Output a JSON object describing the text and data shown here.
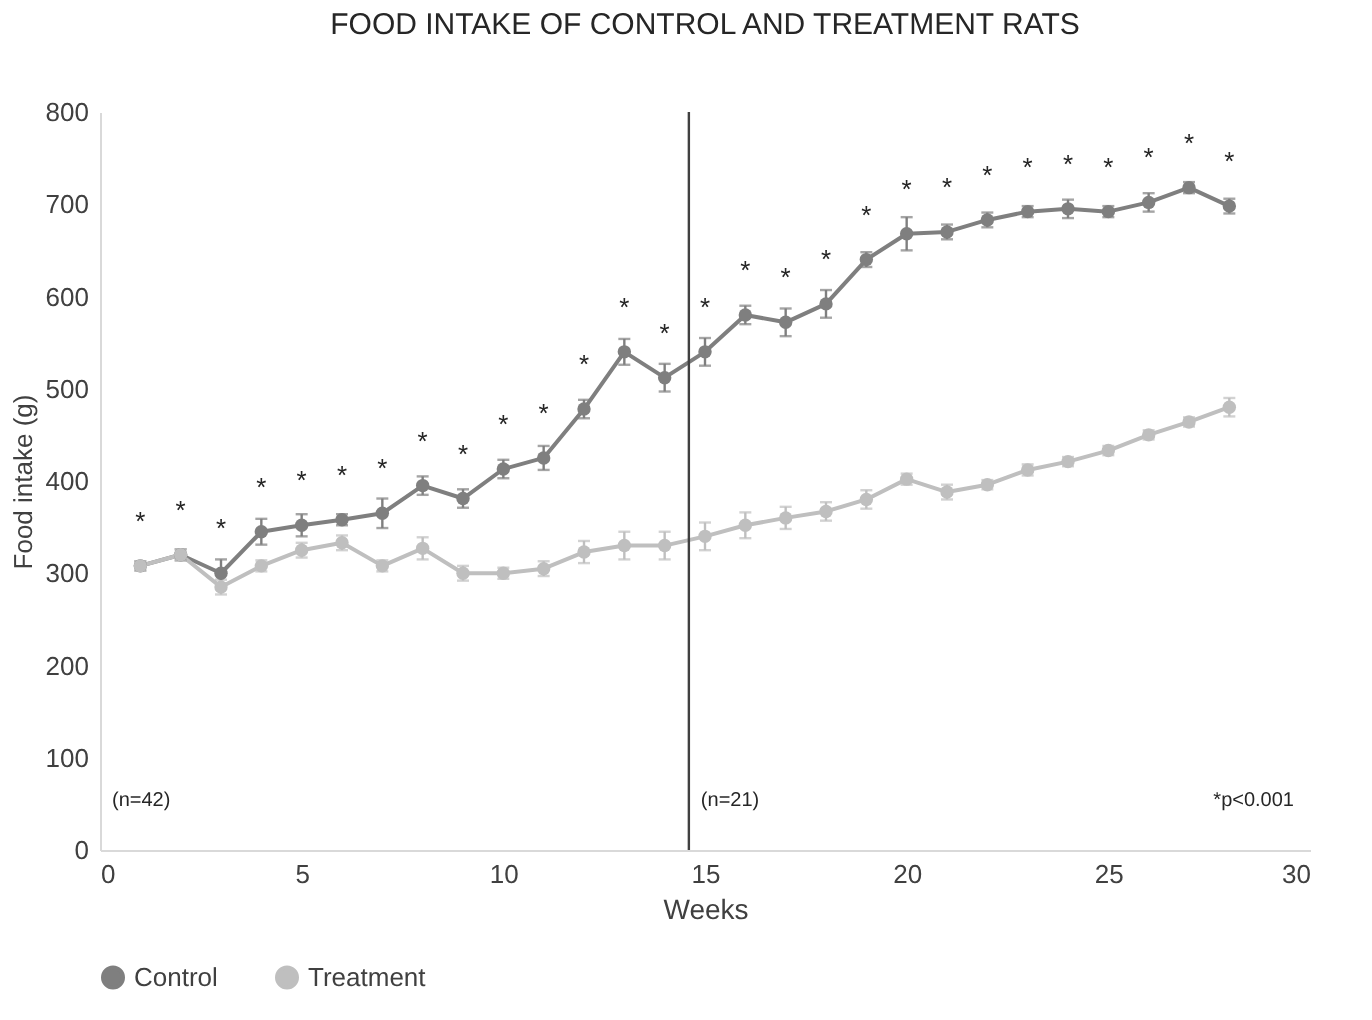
{
  "chart_data": {
    "type": "line",
    "title": "FOOD INTAKE OF CONTROL AND TREATMENT RATS",
    "xlabel": "Weeks",
    "ylabel": "Food intake (g)",
    "x": [
      1,
      2,
      3,
      4,
      5,
      6,
      7,
      8,
      9,
      10,
      11,
      12,
      13,
      14,
      15,
      16,
      17,
      18,
      19,
      20,
      21,
      22,
      23,
      24,
      25,
      26,
      27,
      28
    ],
    "series": [
      {
        "name": "Control",
        "color": "#7f7f7f",
        "values": [
          308,
          320,
          300,
          345,
          352,
          358,
          365,
          395,
          381,
          413,
          425,
          478,
          540,
          512,
          540,
          580,
          572,
          592,
          640,
          668,
          670,
          683,
          692,
          695,
          692,
          702,
          718,
          698
        ],
        "errors": [
          5,
          6,
          15,
          14,
          12,
          6,
          16,
          10,
          10,
          10,
          13,
          10,
          14,
          15,
          15,
          10,
          15,
          15,
          8,
          18,
          8,
          8,
          6,
          10,
          6,
          10,
          6,
          8
        ]
      },
      {
        "name": "Treatment",
        "color": "#bfbfbf",
        "values": [
          308,
          320,
          285,
          308,
          325,
          333,
          308,
          327,
          300,
          300,
          305,
          323,
          330,
          330,
          340,
          352,
          360,
          367,
          380,
          402,
          388,
          396,
          412,
          421,
          433,
          450,
          464,
          480
        ],
        "errors": [
          5,
          6,
          8,
          6,
          8,
          8,
          6,
          12,
          8,
          6,
          8,
          12,
          15,
          15,
          15,
          14,
          12,
          10,
          10,
          6,
          8,
          5,
          6,
          5,
          5,
          5,
          5,
          10
        ]
      }
    ],
    "xlim": [
      0,
      30
    ],
    "xticks": [
      0,
      5,
      10,
      15,
      20,
      25,
      30
    ],
    "ylim": [
      0,
      800
    ],
    "yticks": [
      0,
      100,
      200,
      300,
      400,
      500,
      600,
      700,
      800
    ],
    "ref_lines": [
      {
        "axis": "x",
        "value": 14.6,
        "color": "#404040"
      }
    ],
    "annotations": [
      "(n=42)",
      "(n=21)",
      "*p<0.001",
      {
        "text": "*",
        "x": 1,
        "y": 308
      },
      {
        "text": "*",
        "x": 2,
        "y": 320
      },
      {
        "text": "*",
        "x": 3,
        "y": 300
      },
      {
        "text": "*",
        "x": 4,
        "y": 345
      },
      {
        "text": "*",
        "x": 5,
        "y": 352
      },
      {
        "text": "*",
        "x": 6,
        "y": 358
      },
      {
        "text": "*",
        "x": 7,
        "y": 365
      },
      {
        "text": "*",
        "x": 8,
        "y": 395
      },
      {
        "text": "*",
        "x": 9,
        "y": 381
      },
      {
        "text": "*",
        "x": 10,
        "y": 413
      },
      {
        "text": "*",
        "x": 11,
        "y": 425
      },
      {
        "text": "*",
        "x": 12,
        "y": 478
      },
      {
        "text": "*",
        "x": 13,
        "y": 540
      },
      {
        "text": "*",
        "x": 14,
        "y": 512
      },
      {
        "text": "*",
        "x": 15,
        "y": 540
      },
      {
        "text": "*",
        "x": 16,
        "y": 580
      },
      {
        "text": "*",
        "x": 17,
        "y": 572
      },
      {
        "text": "*",
        "x": 18,
        "y": 592
      },
      {
        "text": "*",
        "x": 19,
        "y": 640
      },
      {
        "text": "*",
        "x": 20,
        "y": 668
      },
      {
        "text": "*",
        "x": 21,
        "y": 670
      },
      {
        "text": "*",
        "x": 22,
        "y": 683
      },
      {
        "text": "*",
        "x": 23,
        "y": 692
      },
      {
        "text": "*",
        "x": 24,
        "y": 695
      },
      {
        "text": "*",
        "x": 25,
        "y": 692
      },
      {
        "text": "*",
        "x": 26,
        "y": 702
      },
      {
        "text": "*",
        "x": 27,
        "y": 718
      },
      {
        "text": "*",
        "x": 28,
        "y": 698
      }
    ],
    "legend": "bottom",
    "marker": "circle",
    "line_style": "solid",
    "grid": false
  }
}
